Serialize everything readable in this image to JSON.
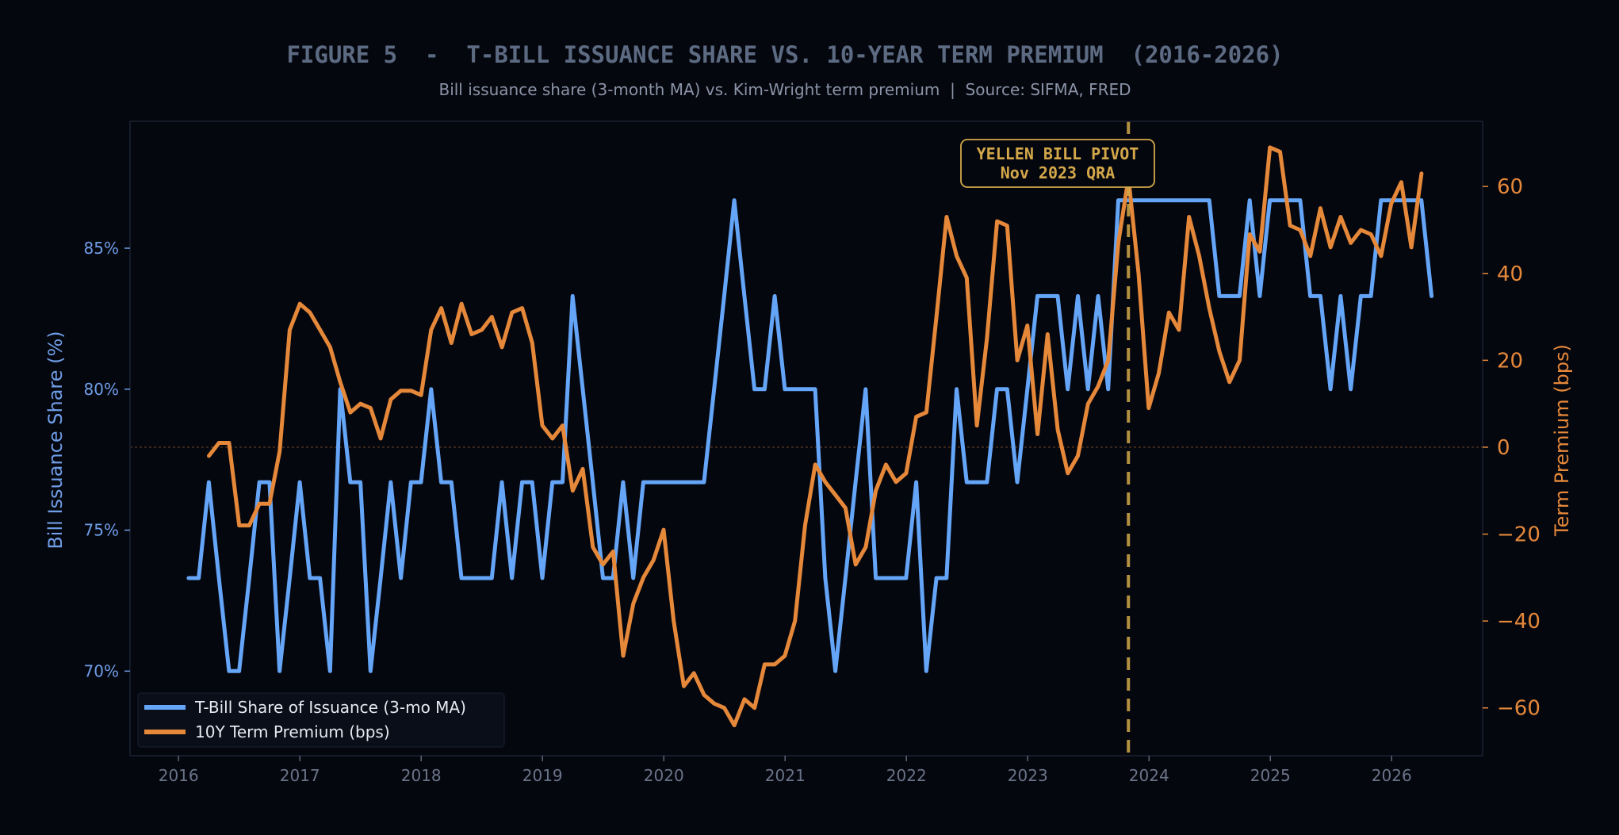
{
  "chart_data": {
    "type": "line",
    "title": "FIGURE 5  -  T-BILL ISSUANCE SHARE VS. 10-YEAR TERM PREMIUM  (2016-2026)",
    "subtitle": "Bill issuance share (3-month MA) vs. Kim-Wright term premium  |  Source: SIFMA, FRED",
    "xlabel": "",
    "ylabel_left": "Bill Issuance Share (%)",
    "ylabel_right": "Term Premium (bps)",
    "xlim": [
      2015.6,
      2026.75
    ],
    "ylim_left": [
      67,
      89.5
    ],
    "ylim_right": [
      -71,
      75
    ],
    "x_ticks": [
      2016,
      2017,
      2018,
      2019,
      2020,
      2021,
      2022,
      2023,
      2024,
      2025,
      2026
    ],
    "x_tick_labels": [
      "2016",
      "2017",
      "2018",
      "2019",
      "2020",
      "2021",
      "2022",
      "2023",
      "2024",
      "2025",
      "2026"
    ],
    "y_left_ticks": [
      70,
      75,
      80,
      85
    ],
    "y_left_tick_labels": [
      "70%",
      "75%",
      "80%",
      "85%"
    ],
    "y_right_ticks": [
      -60,
      -40,
      -20,
      0,
      20,
      40,
      60
    ],
    "y_right_tick_labels": [
      "−60",
      "−40",
      "−20",
      "0",
      "20",
      "40",
      "60"
    ],
    "grid": false,
    "legend_position": "lower-left",
    "zero_line": {
      "axis": "right",
      "value": 0
    },
    "annotation": {
      "x": 2023.83,
      "line1": "YELLEN BILL PIVOT",
      "line2": "Nov 2023 QRA"
    },
    "colors": {
      "bill_share": "#64a5f7",
      "term_premium": "#e5883a",
      "annotation": "#d4a84a",
      "left_axis": "#6f9de6",
      "right_axis": "#e5883a"
    },
    "series": [
      {
        "name": "T-Bill Share of Issuance (3-mo MA)",
        "axis": "left",
        "x_start": 2016.083,
        "x_step": 0.0833,
        "values": [
          73.3,
          73.3,
          76.7,
          73.3,
          70,
          70,
          73.3,
          76.7,
          76.7,
          70,
          73.3,
          76.7,
          73.3,
          73.3,
          70,
          80,
          76.7,
          76.7,
          70,
          73.3,
          76.7,
          73.3,
          76.7,
          76.7,
          80,
          76.7,
          76.7,
          73.3,
          73.3,
          73.3,
          73.3,
          76.7,
          73.3,
          76.7,
          76.7,
          73.3,
          76.7,
          76.7,
          83.3,
          80,
          76.7,
          73.3,
          73.3,
          76.7,
          73.3,
          76.7,
          76.7,
          76.7,
          76.7,
          76.7,
          76.7,
          76.7,
          80,
          83.3,
          86.7,
          83.3,
          80,
          80,
          83.3,
          80,
          80,
          80,
          80,
          73.3,
          70,
          73.3,
          76.7,
          80,
          73.3,
          73.3,
          73.3,
          73.3,
          76.7,
          70,
          73.3,
          73.3,
          80,
          76.7,
          76.7,
          76.7,
          80,
          80,
          76.7,
          80,
          83.3,
          83.3,
          83.3,
          80,
          83.3,
          80,
          83.3,
          80,
          86.7,
          86.7,
          86.7,
          86.7,
          86.7,
          86.7,
          86.7,
          86.7,
          86.7,
          86.7,
          83.3,
          83.3,
          83.3,
          86.7,
          83.3,
          86.7,
          86.7,
          86.7,
          86.7,
          83.3,
          83.3,
          80,
          83.3,
          80,
          83.3,
          83.3,
          86.7,
          86.7,
          86.7,
          86.7,
          86.7,
          83.3
        ]
      },
      {
        "name": "10Y Term Premium (bps)",
        "axis": "right",
        "x_start": 2016.25,
        "x_step": 0.0833,
        "values": [
          -2,
          1,
          1,
          -18,
          -18,
          -13,
          -13,
          -1,
          27,
          33,
          31,
          27,
          23,
          15,
          8,
          10,
          9,
          2,
          11,
          13,
          13,
          12,
          27,
          32,
          24,
          33,
          26,
          27,
          30,
          23,
          31,
          32,
          24,
          5,
          2,
          5,
          -10,
          -5,
          -23,
          -27,
          -24,
          -48,
          -36,
          -30,
          -26,
          -19,
          -40,
          -55,
          -52,
          -57,
          -59,
          -60,
          -64,
          -58,
          -60,
          -50,
          -50,
          -48,
          -40,
          -18,
          -4,
          -8,
          -11,
          -14,
          -27,
          -23,
          -10,
          -4,
          -8,
          -6,
          7,
          8,
          30,
          53,
          44,
          39,
          5,
          25,
          52,
          51,
          20,
          28,
          3,
          26,
          4,
          -6,
          -2,
          10,
          14,
          20,
          47,
          62,
          40,
          9,
          17,
          31,
          27,
          53,
          44,
          32,
          22,
          15,
          20,
          49,
          45,
          69,
          68,
          51,
          50,
          44,
          55,
          46,
          53,
          47,
          50,
          49,
          44,
          56,
          61,
          46,
          63
        ]
      }
    ]
  },
  "legend": {
    "bill_share_label": "T-Bill Share of Issuance (3-mo MA)",
    "term_premium_label": "10Y Term Premium (bps)"
  }
}
